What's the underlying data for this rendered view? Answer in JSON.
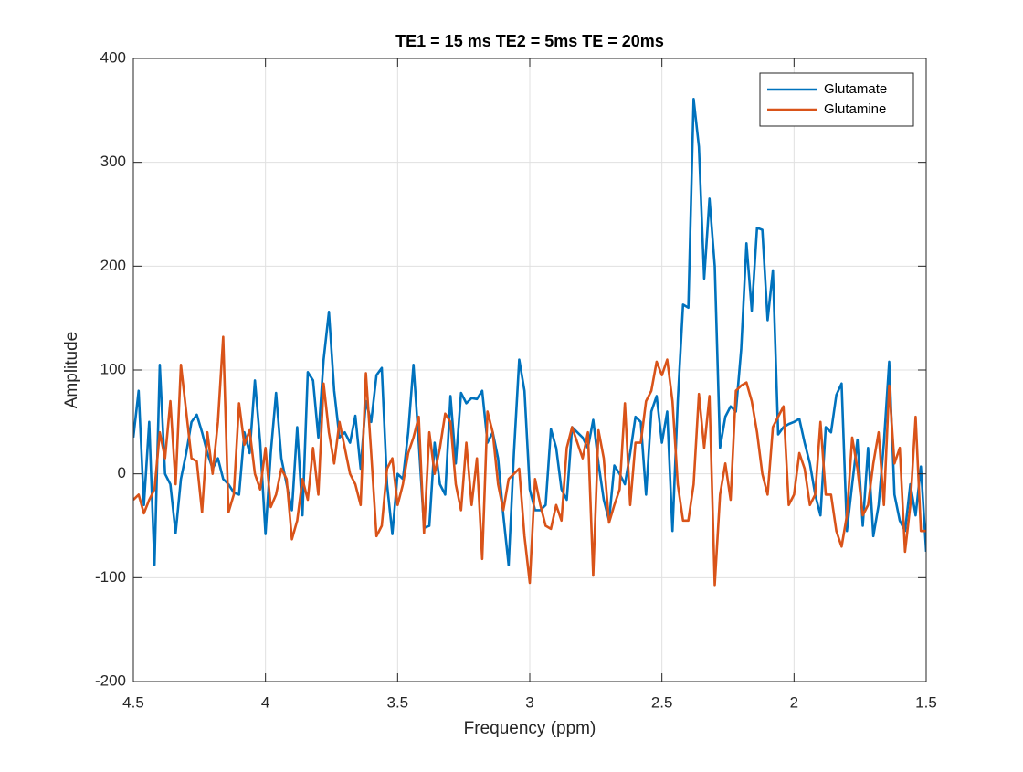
{
  "chart_data": {
    "type": "line",
    "title": "TE1 = 15 ms TE2 = 5ms TE = 20ms",
    "xlabel": "Frequency (ppm)",
    "ylabel": "Amplitude",
    "xlim": [
      4.5,
      1.5
    ],
    "ylim": [
      -200,
      400
    ],
    "xticks": [
      4.5,
      4,
      3.5,
      3,
      2.5,
      2,
      1.5
    ],
    "yticks": [
      -200,
      -100,
      0,
      100,
      200,
      300,
      400
    ],
    "grid": true,
    "legend": "top-right",
    "x": [
      4.5,
      4.48,
      4.46,
      4.44,
      4.42,
      4.4,
      4.38,
      4.36,
      4.34,
      4.32,
      4.3,
      4.28,
      4.26,
      4.24,
      4.22,
      4.2,
      4.18,
      4.16,
      4.14,
      4.12,
      4.1,
      4.08,
      4.06,
      4.04,
      4.02,
      4.0,
      3.98,
      3.96,
      3.94,
      3.92,
      3.9,
      3.88,
      3.86,
      3.84,
      3.82,
      3.8,
      3.78,
      3.76,
      3.74,
      3.72,
      3.7,
      3.68,
      3.66,
      3.64,
      3.62,
      3.6,
      3.58,
      3.56,
      3.54,
      3.52,
      3.5,
      3.48,
      3.46,
      3.44,
      3.42,
      3.4,
      3.38,
      3.36,
      3.34,
      3.32,
      3.3,
      3.28,
      3.26,
      3.24,
      3.22,
      3.2,
      3.18,
      3.16,
      3.14,
      3.12,
      3.1,
      3.08,
      3.06,
      3.04,
      3.02,
      3.0,
      2.98,
      2.96,
      2.94,
      2.92,
      2.9,
      2.88,
      2.86,
      2.84,
      2.82,
      2.8,
      2.78,
      2.76,
      2.74,
      2.72,
      2.7,
      2.68,
      2.66,
      2.64,
      2.62,
      2.6,
      2.58,
      2.56,
      2.54,
      2.52,
      2.5,
      2.48,
      2.46,
      2.44,
      2.42,
      2.4,
      2.38,
      2.36,
      2.34,
      2.32,
      2.3,
      2.28,
      2.26,
      2.24,
      2.22,
      2.2,
      2.18,
      2.16,
      2.14,
      2.12,
      2.1,
      2.08,
      2.06,
      2.04,
      2.02,
      2.0,
      1.98,
      1.96,
      1.94,
      1.92,
      1.9,
      1.88,
      1.86,
      1.84,
      1.82,
      1.8,
      1.78,
      1.76,
      1.74,
      1.72,
      1.7,
      1.68,
      1.66,
      1.64,
      1.62,
      1.6,
      1.58,
      1.56,
      1.54,
      1.52,
      1.5
    ],
    "series": [
      {
        "name": "Glutamate",
        "color": "#0072bd",
        "values": [
          35,
          80,
          -30,
          50,
          -88,
          105,
          0,
          -10,
          -57,
          -5,
          20,
          50,
          57,
          40,
          20,
          5,
          15,
          -5,
          -10,
          -18,
          -20,
          40,
          20,
          90,
          30,
          -58,
          20,
          78,
          15,
          -10,
          -35,
          45,
          -40,
          98,
          90,
          35,
          110,
          156,
          80,
          35,
          40,
          30,
          56,
          5,
          70,
          50,
          95,
          102,
          -10,
          -58,
          0,
          -5,
          40,
          105,
          30,
          -52,
          -50,
          30,
          -10,
          -20,
          75,
          10,
          78,
          68,
          73,
          72,
          80,
          30,
          40,
          15,
          -40,
          -88,
          20,
          110,
          80,
          -15,
          -35,
          -35,
          -30,
          43,
          25,
          -15,
          -25,
          45,
          40,
          35,
          25,
          52,
          10,
          -25,
          -45,
          8,
          0,
          -10,
          20,
          55,
          50,
          -20,
          60,
          75,
          30,
          60,
          -55,
          70,
          163,
          160,
          361,
          315,
          188,
          265,
          200,
          25,
          55,
          65,
          60,
          120,
          222,
          157,
          237,
          235,
          148,
          196,
          38,
          45,
          48,
          50,
          53,
          30,
          10,
          -20,
          -40,
          45,
          40,
          76,
          87,
          -55,
          -10,
          33,
          -50,
          25,
          -60,
          -30,
          30,
          108,
          -20,
          -45,
          -55,
          -10,
          -40,
          7,
          -75
        ]
      },
      {
        "name": "Glutamine",
        "color": "#d95319",
        "values": [
          -25,
          -20,
          -38,
          -25,
          -15,
          40,
          15,
          70,
          -10,
          105,
          60,
          15,
          12,
          -37,
          40,
          0,
          50,
          132,
          -37,
          -20,
          68,
          28,
          42,
          0,
          -15,
          25,
          -32,
          -20,
          5,
          -5,
          -63,
          -45,
          -5,
          -25,
          25,
          -20,
          87,
          40,
          10,
          50,
          25,
          0,
          -10,
          -30,
          97,
          20,
          -60,
          -50,
          5,
          15,
          -30,
          -10,
          20,
          35,
          55,
          -57,
          40,
          0,
          25,
          58,
          50,
          -10,
          -35,
          30,
          -30,
          15,
          -82,
          60,
          40,
          -10,
          -35,
          -5,
          0,
          5,
          -60,
          -105,
          -5,
          -30,
          -50,
          -53,
          -30,
          -45,
          25,
          45,
          30,
          15,
          40,
          -98,
          42,
          15,
          -47,
          -30,
          -15,
          68,
          -30,
          30,
          30,
          70,
          80,
          108,
          95,
          110,
          70,
          -10,
          -45,
          -45,
          -10,
          77,
          25,
          75,
          -107,
          -20,
          10,
          -25,
          80,
          85,
          88,
          70,
          40,
          0,
          -20,
          45,
          55,
          65,
          -30,
          -20,
          20,
          5,
          -30,
          -20,
          50,
          -20,
          -20,
          -55,
          -70,
          -40,
          35,
          5,
          -40,
          -30,
          10,
          40,
          -30,
          85,
          10,
          25,
          -75,
          -30,
          55,
          -55,
          -55
        ]
      }
    ]
  }
}
